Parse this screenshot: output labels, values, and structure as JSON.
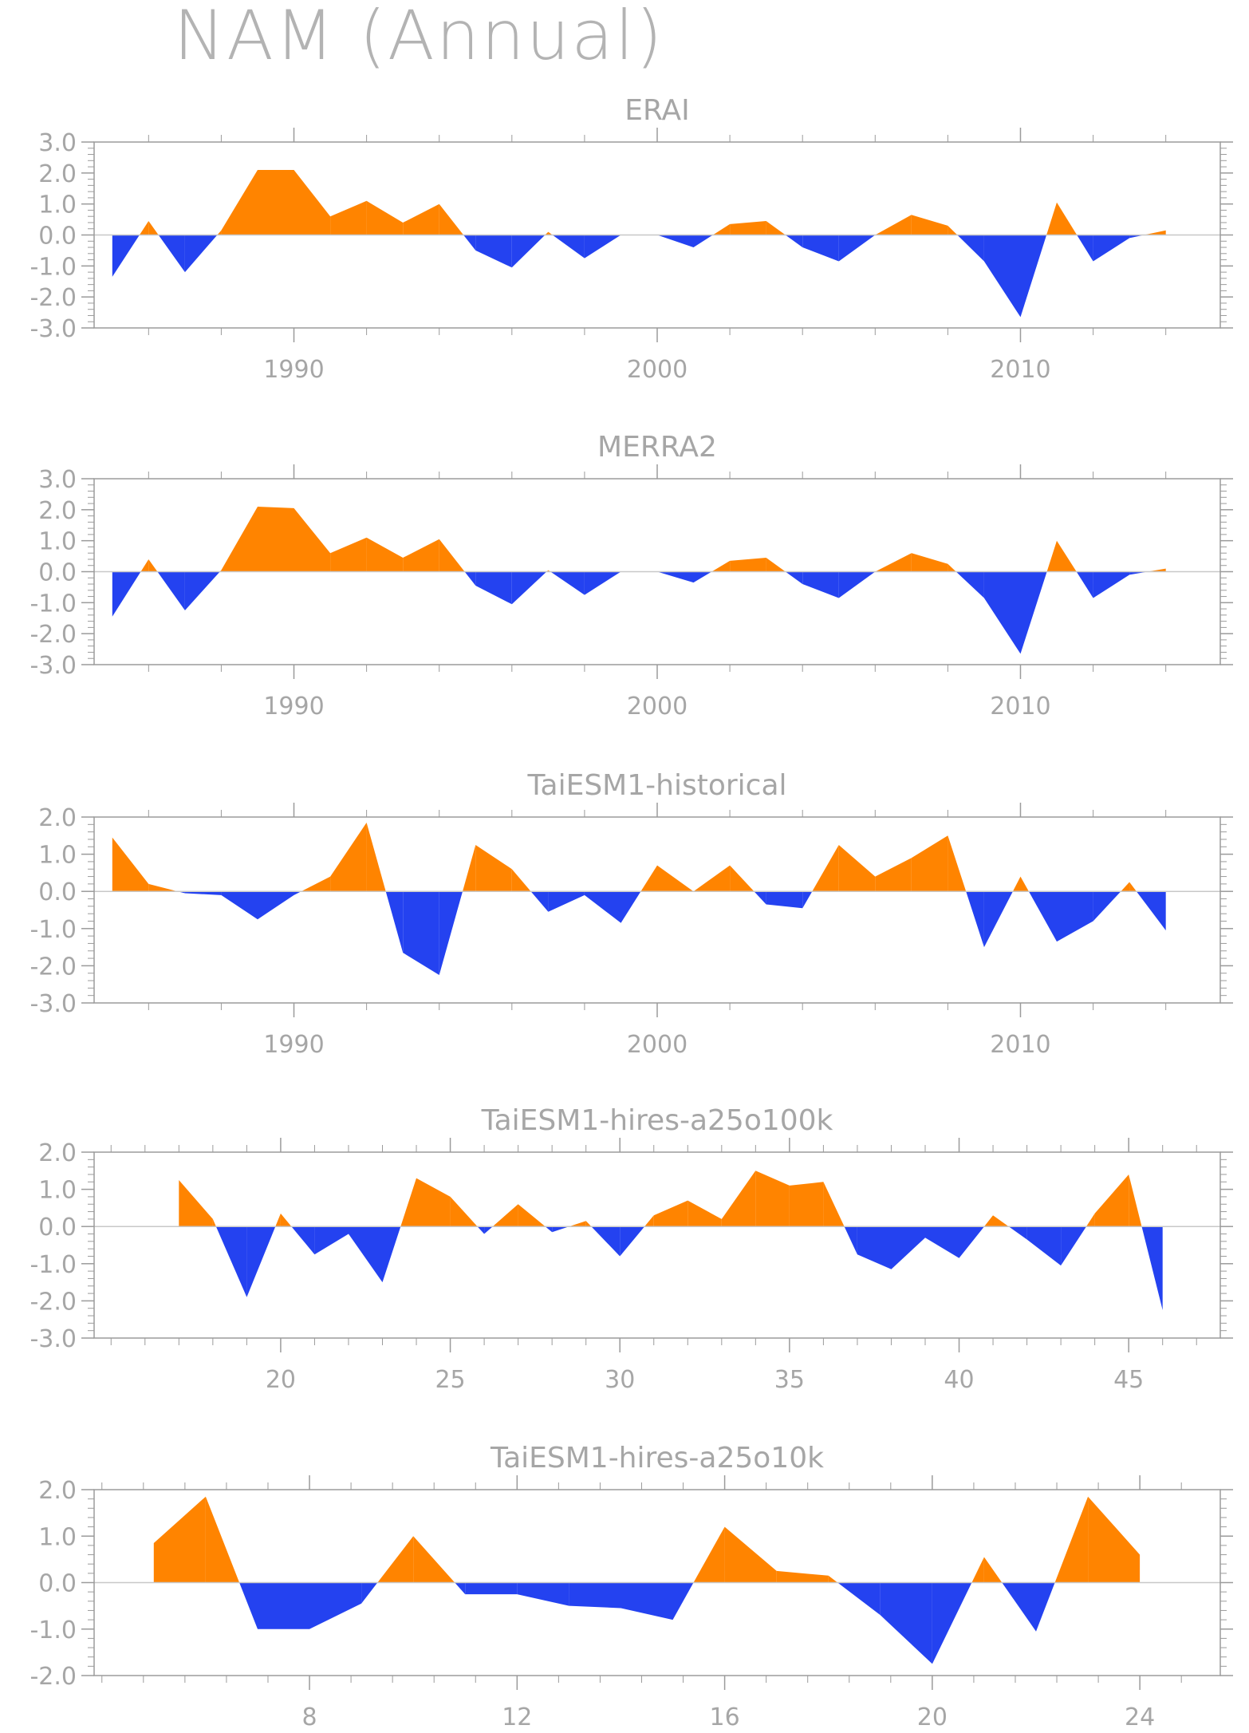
{
  "title": "NAM (Annual)",
  "colors": {
    "positive": "#ff8400",
    "negative": "#2442f0",
    "axis": "#9b9b9b",
    "text": "#a6a6a6",
    "zero_line": "#c8c8c8"
  },
  "chart_data": [
    {
      "type": "area",
      "title": "ERAI",
      "xlabel": "",
      "ylabel": "",
      "xlim": [
        1984.5,
        2015.5
      ],
      "ylim": [
        -3.0,
        3.0
      ],
      "yticks": [
        -3.0,
        -2.0,
        -1.0,
        0.0,
        1.0,
        2.0,
        3.0
      ],
      "ytick_labels": [
        "-3.0",
        "-2.0",
        "-1.0",
        "0.0",
        "1.0",
        "2.0",
        "3.0"
      ],
      "xticks": [
        1990,
        2000,
        2010
      ],
      "xtick_labels": [
        "1990",
        "2000",
        "2010"
      ],
      "x": [
        1985,
        1986,
        1987,
        1988,
        1989,
        1990,
        1991,
        1992,
        1993,
        1994,
        1995,
        1996,
        1997,
        1998,
        1999,
        2000,
        2001,
        2002,
        2003,
        2004,
        2005,
        2006,
        2007,
        2008,
        2009,
        2010,
        2011,
        2012,
        2013,
        2014
      ],
      "values": [
        -1.35,
        0.45,
        -1.2,
        0.15,
        2.1,
        2.1,
        0.6,
        1.1,
        0.4,
        1.0,
        -0.5,
        -1.05,
        0.1,
        -0.75,
        0.0,
        0.0,
        -0.4,
        0.35,
        0.45,
        -0.4,
        -0.85,
        0.0,
        0.65,
        0.3,
        -0.85,
        -2.65,
        1.05,
        -0.85,
        -0.1,
        0.15
      ]
    },
    {
      "type": "area",
      "title": "MERRA2",
      "xlabel": "",
      "ylabel": "",
      "xlim": [
        1984.5,
        2015.5
      ],
      "ylim": [
        -3.0,
        3.0
      ],
      "yticks": [
        -3.0,
        -2.0,
        -1.0,
        0.0,
        1.0,
        2.0,
        3.0
      ],
      "ytick_labels": [
        "-3.0",
        "-2.0",
        "-1.0",
        "0.0",
        "1.0",
        "2.0",
        "3.0"
      ],
      "xticks": [
        1990,
        2000,
        2010
      ],
      "xtick_labels": [
        "1990",
        "2000",
        "2010"
      ],
      "x": [
        1985,
        1986,
        1987,
        1988,
        1989,
        1990,
        1991,
        1992,
        1993,
        1994,
        1995,
        1996,
        1997,
        1998,
        1999,
        2000,
        2001,
        2002,
        2003,
        2004,
        2005,
        2006,
        2007,
        2008,
        2009,
        2010,
        2011,
        2012,
        2013,
        2014
      ],
      "values": [
        -1.45,
        0.4,
        -1.25,
        0.05,
        2.1,
        2.05,
        0.6,
        1.1,
        0.45,
        1.05,
        -0.45,
        -1.05,
        0.05,
        -0.75,
        0.0,
        0.0,
        -0.35,
        0.35,
        0.45,
        -0.4,
        -0.85,
        0.0,
        0.6,
        0.25,
        -0.85,
        -2.65,
        1.0,
        -0.85,
        -0.1,
        0.1
      ]
    },
    {
      "type": "area",
      "title": "TaiESM1-historical",
      "xlabel": "",
      "ylabel": "",
      "xlim": [
        1984.5,
        2015.5
      ],
      "ylim": [
        -3.0,
        2.0
      ],
      "yticks": [
        -3.0,
        -2.0,
        -1.0,
        0.0,
        1.0,
        2.0
      ],
      "ytick_labels": [
        "-3.0",
        "-2.0",
        "-1.0",
        "0.0",
        "1.0",
        "2.0"
      ],
      "xticks": [
        1990,
        2000,
        2010
      ],
      "xtick_labels": [
        "1990",
        "2000",
        "2010"
      ],
      "x": [
        1985,
        1986,
        1987,
        1988,
        1989,
        1990,
        1991,
        1992,
        1993,
        1994,
        1995,
        1996,
        1997,
        1998,
        1999,
        2000,
        2001,
        2002,
        2003,
        2004,
        2005,
        2006,
        2007,
        2008,
        2009,
        2010,
        2011,
        2012,
        2013,
        2014
      ],
      "values": [
        1.45,
        0.2,
        -0.05,
        -0.1,
        -0.75,
        -0.1,
        0.4,
        1.85,
        -1.65,
        -2.25,
        1.25,
        0.6,
        -0.55,
        -0.1,
        -0.85,
        0.7,
        0.0,
        0.7,
        -0.35,
        -0.45,
        1.25,
        0.4,
        0.9,
        1.5,
        -1.5,
        0.4,
        -1.35,
        -0.8,
        0.25,
        -1.05
      ]
    },
    {
      "type": "area",
      "title": "TaiESM1-hires-a25o100k",
      "xlabel": "",
      "ylabel": "",
      "xlim": [
        14.5,
        47.7
      ],
      "ylim": [
        -3.0,
        2.0
      ],
      "yticks": [
        -3.0,
        -2.0,
        -1.0,
        0.0,
        1.0,
        2.0
      ],
      "ytick_labels": [
        "-3.0",
        "-2.0",
        "-1.0",
        "0.0",
        "1.0",
        "2.0"
      ],
      "xticks": [
        20,
        25,
        30,
        35,
        40,
        45
      ],
      "xtick_labels": [
        "20",
        "25",
        "30",
        "35",
        "40",
        "45"
      ],
      "x": [
        17,
        18,
        19,
        20,
        21,
        22,
        23,
        24,
        25,
        26,
        27,
        28,
        29,
        30,
        31,
        32,
        33,
        34,
        35,
        36,
        37,
        38,
        39,
        40,
        41,
        42,
        43,
        44,
        45,
        46
      ],
      "values": [
        1.25,
        0.2,
        -1.9,
        0.35,
        -0.75,
        -0.2,
        -1.5,
        1.3,
        0.8,
        -0.2,
        0.6,
        -0.15,
        0.15,
        -0.8,
        0.3,
        0.7,
        0.2,
        1.5,
        1.1,
        1.2,
        -0.75,
        -1.15,
        -0.3,
        -0.85,
        0.3,
        -0.35,
        -1.05,
        0.35,
        1.4,
        -2.25
      ]
    },
    {
      "type": "area",
      "title": "TaiESM1-hires-a25o10k",
      "xlabel": "",
      "ylabel": "",
      "xlim": [
        3.85,
        25.55
      ],
      "ylim": [
        -2.0,
        2.0
      ],
      "yticks": [
        -2.0,
        -1.0,
        0.0,
        1.0,
        2.0
      ],
      "ytick_labels": [
        "-2.0",
        "-1.0",
        "0.0",
        "1.0",
        "2.0"
      ],
      "xticks": [
        8,
        12,
        16,
        20,
        24
      ],
      "xtick_labels": [
        "8",
        "12",
        "16",
        "20",
        "24"
      ],
      "x": [
        5,
        6,
        7,
        8,
        9,
        10,
        11,
        12,
        13,
        14,
        15,
        16,
        17,
        18,
        19,
        20,
        21,
        22,
        23,
        24
      ],
      "values": [
        0.85,
        1.85,
        -1.0,
        -1.0,
        -0.45,
        1.0,
        -0.25,
        -0.25,
        -0.5,
        -0.55,
        -0.8,
        1.2,
        0.25,
        0.15,
        -0.7,
        -1.75,
        0.55,
        -1.05,
        1.85,
        0.6
      ]
    }
  ]
}
